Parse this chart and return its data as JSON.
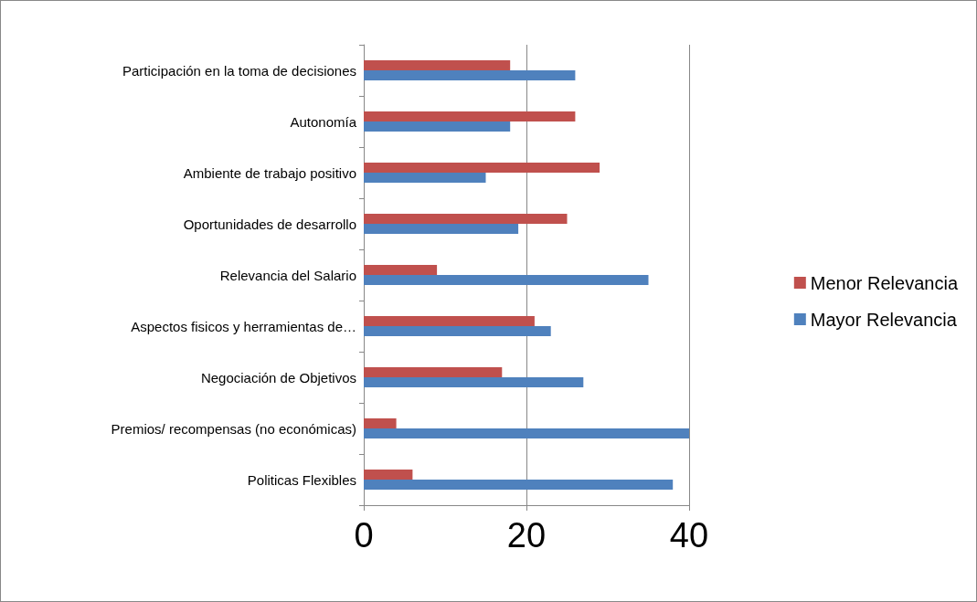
{
  "chart_data": {
    "type": "bar",
    "orientation": "horizontal",
    "categories": [
      "Participación en la toma de decisiones",
      "Autonomía",
      "Ambiente de trabajo positivo",
      "Oportunidades de desarrollo",
      "Relevancia del Salario",
      "Aspectos fisicos y herramientas de…",
      "Negociación de Objetivos",
      "Premios/ recompensas (no económicas)",
      "Politicas Flexibles"
    ],
    "series": [
      {
        "name": "Menor Relevancia",
        "color": "#c0504d",
        "values": [
          18,
          26,
          29,
          25,
          9,
          21,
          17,
          4,
          6
        ]
      },
      {
        "name": "Mayor Relevancia",
        "color": "#4f81bd",
        "values": [
          26,
          18,
          15,
          19,
          35,
          23,
          27,
          40,
          38
        ]
      }
    ],
    "xlim": [
      0,
      40
    ],
    "xticks": [
      0,
      20,
      40
    ],
    "grid": "x",
    "legend": "right"
  }
}
